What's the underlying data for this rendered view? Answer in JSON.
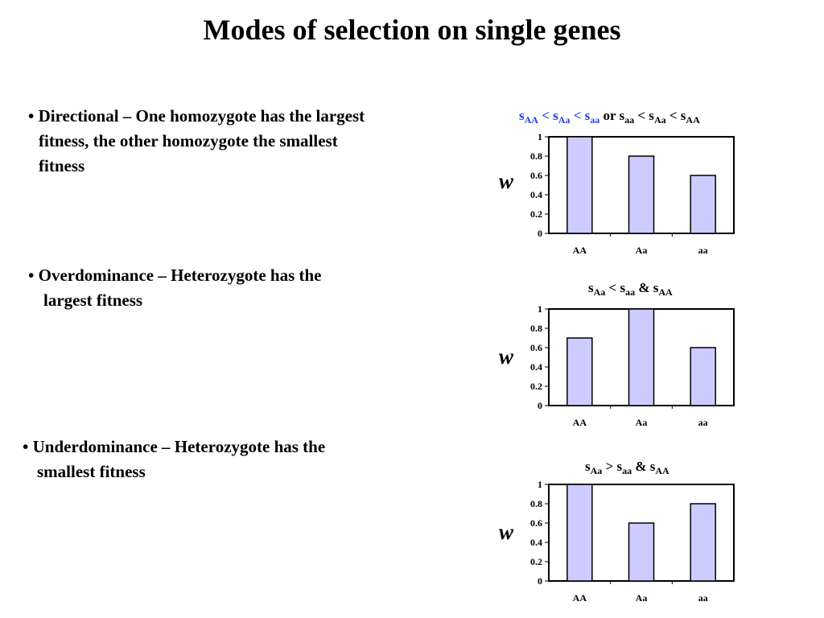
{
  "page": {
    "title": "Modes of selection on single genes"
  },
  "bullets": [
    {
      "symbol": "•",
      "lines": [
        "Directional – One homozygote has the largest",
        "fitness, the other homozygote the smallest",
        "fitness"
      ]
    },
    {
      "symbol": "•",
      "lines": [
        "Overdominance – Heterozygote has the",
        "largest fitness"
      ]
    },
    {
      "symbol": "•",
      "lines": [
        "Underdominance – Heterozygote has the",
        "smallest fitness"
      ]
    }
  ],
  "chart_titles": {
    "c1": {
      "a": "s",
      "a_sub": "AA",
      "b": " < s",
      "b_sub": "Aa",
      "c": " < s",
      "c_sub": "aa",
      "d": " or s",
      "d_sub": "aa",
      "e": " <  s",
      "e_sub": "Aa",
      "f": " < s",
      "f_sub": "AA",
      "blue_color": "#1f3fdc"
    },
    "c2": {
      "a": "s",
      "a_sub": "Aa",
      "b": " < s",
      "b_sub": "aa",
      "c": " & s",
      "c_sub": "AA"
    },
    "c3": {
      "a": "s",
      "a_sub": "Aa",
      "b": " > s",
      "b_sub": "aa",
      "c": " & s",
      "c_sub": "AA"
    }
  },
  "y_axis_symbol": "w",
  "colors": {
    "bar_fill": "#ccccff",
    "bar_stroke": "#000000",
    "frame": "#000000"
  },
  "chart_data": [
    {
      "type": "bar",
      "categories": [
        "AA",
        "Aa",
        "aa"
      ],
      "values": [
        1.0,
        0.8,
        0.6
      ],
      "ylabel": "w",
      "ylim": [
        0,
        1
      ],
      "yticks": [
        "0",
        "0.2",
        "0.4",
        "0.6",
        "0.8",
        "1"
      ],
      "grid": false,
      "legend": "none"
    },
    {
      "type": "bar",
      "categories": [
        "AA",
        "Aa",
        "aa"
      ],
      "values": [
        0.7,
        1.0,
        0.6
      ],
      "ylabel": "w",
      "ylim": [
        0,
        1
      ],
      "yticks": [
        "0",
        "0.2",
        "0.4",
        "0.6",
        "0.8",
        "1"
      ],
      "grid": false,
      "legend": "none"
    },
    {
      "type": "bar",
      "categories": [
        "AA",
        "Aa",
        "aa"
      ],
      "values": [
        1.0,
        0.6,
        0.8
      ],
      "ylabel": "w",
      "ylim": [
        0,
        1
      ],
      "yticks": [
        "0",
        "0.2",
        "0.4",
        "0.6",
        "0.8",
        "1"
      ],
      "grid": false,
      "legend": "none"
    }
  ]
}
